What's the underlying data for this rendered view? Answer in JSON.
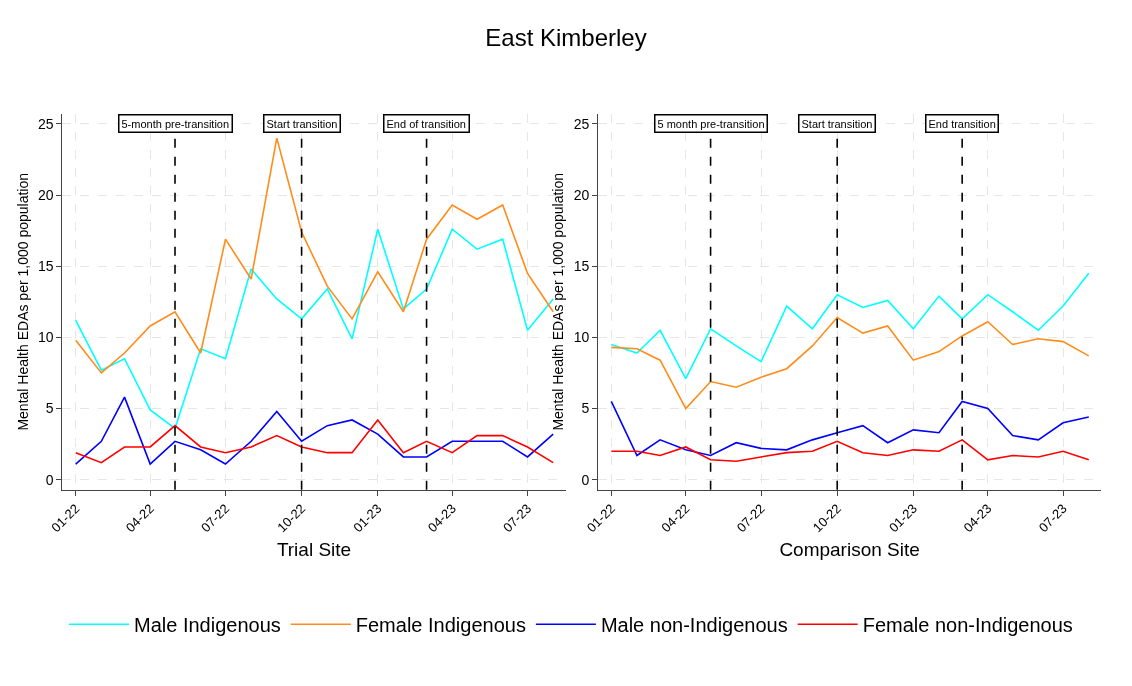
{
  "chart_data": [
    {
      "type": "line",
      "title": "East Kimberley",
      "xlabel": "Trial Site",
      "ylabel": "Mental Health EDAs per 1,000 population",
      "x": [
        "2022-01",
        "2022-02",
        "2022-03",
        "2022-04",
        "2022-05",
        "2022-06",
        "2022-07",
        "2022-08",
        "2022-09",
        "2022-10",
        "2022-11",
        "2022-12",
        "2023-01",
        "2023-02",
        "2023-03",
        "2023-04",
        "2023-05",
        "2023-06",
        "2023-07",
        "2023-08"
      ],
      "series": [
        {
          "name": "Male Indigenous",
          "color": "#00ffff",
          "values": [
            11.2,
            7.7,
            8.5,
            4.9,
            3.6,
            9.2,
            8.5,
            14.8,
            12.7,
            11.3,
            13.4,
            9.9,
            17.6,
            12.0,
            13.4,
            17.6,
            16.2,
            16.9,
            10.5,
            12.7
          ]
        },
        {
          "name": "Female Indigenous",
          "color": "#ff8c1a",
          "values": [
            9.8,
            7.5,
            8.9,
            10.8,
            11.8,
            8.9,
            16.9,
            14.1,
            24.0,
            17.4,
            13.6,
            11.3,
            14.6,
            11.8,
            16.9,
            19.3,
            18.3,
            19.3,
            14.5,
            11.8
          ]
        },
        {
          "name": "Male non-Indigenous",
          "color": "#0000ff",
          "values": [
            1.1,
            2.7,
            5.8,
            1.1,
            2.7,
            2.1,
            1.1,
            2.7,
            4.8,
            2.7,
            3.8,
            4.2,
            3.2,
            1.6,
            1.6,
            2.7,
            2.7,
            2.7,
            1.6,
            3.2
          ]
        },
        {
          "name": "Female non-Indigenous",
          "color": "#ff0000",
          "values": [
            1.9,
            1.2,
            2.3,
            2.3,
            3.8,
            2.3,
            1.9,
            2.3,
            3.1,
            2.3,
            1.9,
            1.9,
            4.2,
            1.9,
            2.7,
            1.9,
            3.1,
            3.1,
            2.3,
            1.2
          ]
        }
      ],
      "xlim": [
        "2021-12-16",
        "2023-08-16"
      ],
      "xticks": [
        {
          "value": "2022-01",
          "label": "01-22"
        },
        {
          "value": "2022-04",
          "label": "04-22"
        },
        {
          "value": "2022-07",
          "label": "07-22"
        },
        {
          "value": "2022-10",
          "label": "10-22"
        },
        {
          "value": "2023-01",
          "label": "01-23"
        },
        {
          "value": "2023-04",
          "label": "04-23"
        },
        {
          "value": "2023-07",
          "label": "07-23"
        }
      ],
      "ylim": [
        -0.7,
        25.7
      ],
      "yticks": [
        0,
        5,
        10,
        15,
        20,
        25
      ],
      "ref_lines": [
        {
          "axis": "x",
          "value": "2022-05",
          "label": "5-month pre-transition",
          "color": "#000000",
          "line_style": "dashed"
        },
        {
          "axis": "x",
          "value": "2022-10",
          "label": "Start transition",
          "color": "#000000",
          "line_style": "dashed"
        },
        {
          "axis": "x",
          "value": "2023-03",
          "label": "End of transition",
          "color": "#000000",
          "line_style": "dashed"
        }
      ],
      "grid": true,
      "legend": "bottom",
      "line_style": "solid",
      "marker": "none"
    },
    {
      "type": "line",
      "xlabel": "Comparison Site",
      "ylabel": "Mental Health EDAs per 1,000 population",
      "x": [
        "2022-01",
        "2022-02",
        "2022-03",
        "2022-04",
        "2022-05",
        "2022-06",
        "2022-07",
        "2022-08",
        "2022-09",
        "2022-10",
        "2022-11",
        "2022-12",
        "2023-01",
        "2023-02",
        "2023-03",
        "2023-04",
        "2023-05",
        "2023-06",
        "2023-07",
        "2023-08"
      ],
      "series": [
        {
          "color": "#00ffff",
          "values": [
            9.5,
            8.9,
            10.5,
            7.1,
            10.6,
            9.4,
            8.3,
            12.2,
            10.6,
            13.0,
            12.1,
            12.6,
            10.6,
            12.9,
            11.3,
            13.0,
            11.8,
            10.5,
            12.2,
            14.5
          ]
        },
        {
          "color": "#ff8c1a",
          "values": [
            9.3,
            9.2,
            8.4,
            5.0,
            6.9,
            6.5,
            7.2,
            7.8,
            9.4,
            11.4,
            10.3,
            10.8,
            8.4,
            9.0,
            10.1,
            11.1,
            9.5,
            9.9,
            9.7,
            8.7
          ]
        },
        {
          "color": "#0000ff",
          "values": [
            5.5,
            1.7,
            2.8,
            2.1,
            1.7,
            2.6,
            2.2,
            2.1,
            2.8,
            3.3,
            3.8,
            2.6,
            3.5,
            3.3,
            5.5,
            5.0,
            3.1,
            2.8,
            4.0,
            4.4
          ]
        },
        {
          "color": "#ff0000",
          "values": [
            2.0,
            2.0,
            1.7,
            2.3,
            1.4,
            1.3,
            1.6,
            1.9,
            2.0,
            2.7,
            1.9,
            1.7,
            2.1,
            2.0,
            2.8,
            1.4,
            1.7,
            1.6,
            2.0,
            1.4
          ]
        }
      ],
      "xlim": [
        "2021-12-16",
        "2023-08-16"
      ],
      "xticks": [
        {
          "value": "2022-01",
          "label": "01-22"
        },
        {
          "value": "2022-04",
          "label": "04-22"
        },
        {
          "value": "2022-07",
          "label": "07-22"
        },
        {
          "value": "2022-10",
          "label": "10-22"
        },
        {
          "value": "2023-01",
          "label": "01-23"
        },
        {
          "value": "2023-04",
          "label": "04-23"
        },
        {
          "value": "2023-07",
          "label": "07-23"
        }
      ],
      "ylim": [
        -0.7,
        25.7
      ],
      "yticks": [
        0,
        5,
        10,
        15,
        20,
        25
      ],
      "ref_lines": [
        {
          "axis": "x",
          "value": "2022-05",
          "label": "5 month pre-transition",
          "color": "#000000",
          "line_style": "dashed"
        },
        {
          "axis": "x",
          "value": "2022-10",
          "label": "Start transition",
          "color": "#000000",
          "line_style": "dashed"
        },
        {
          "axis": "x",
          "value": "2023-03",
          "label": "End transition",
          "color": "#000000",
          "line_style": "dashed"
        }
      ],
      "grid": true,
      "line_style": "solid",
      "marker": "none"
    }
  ]
}
